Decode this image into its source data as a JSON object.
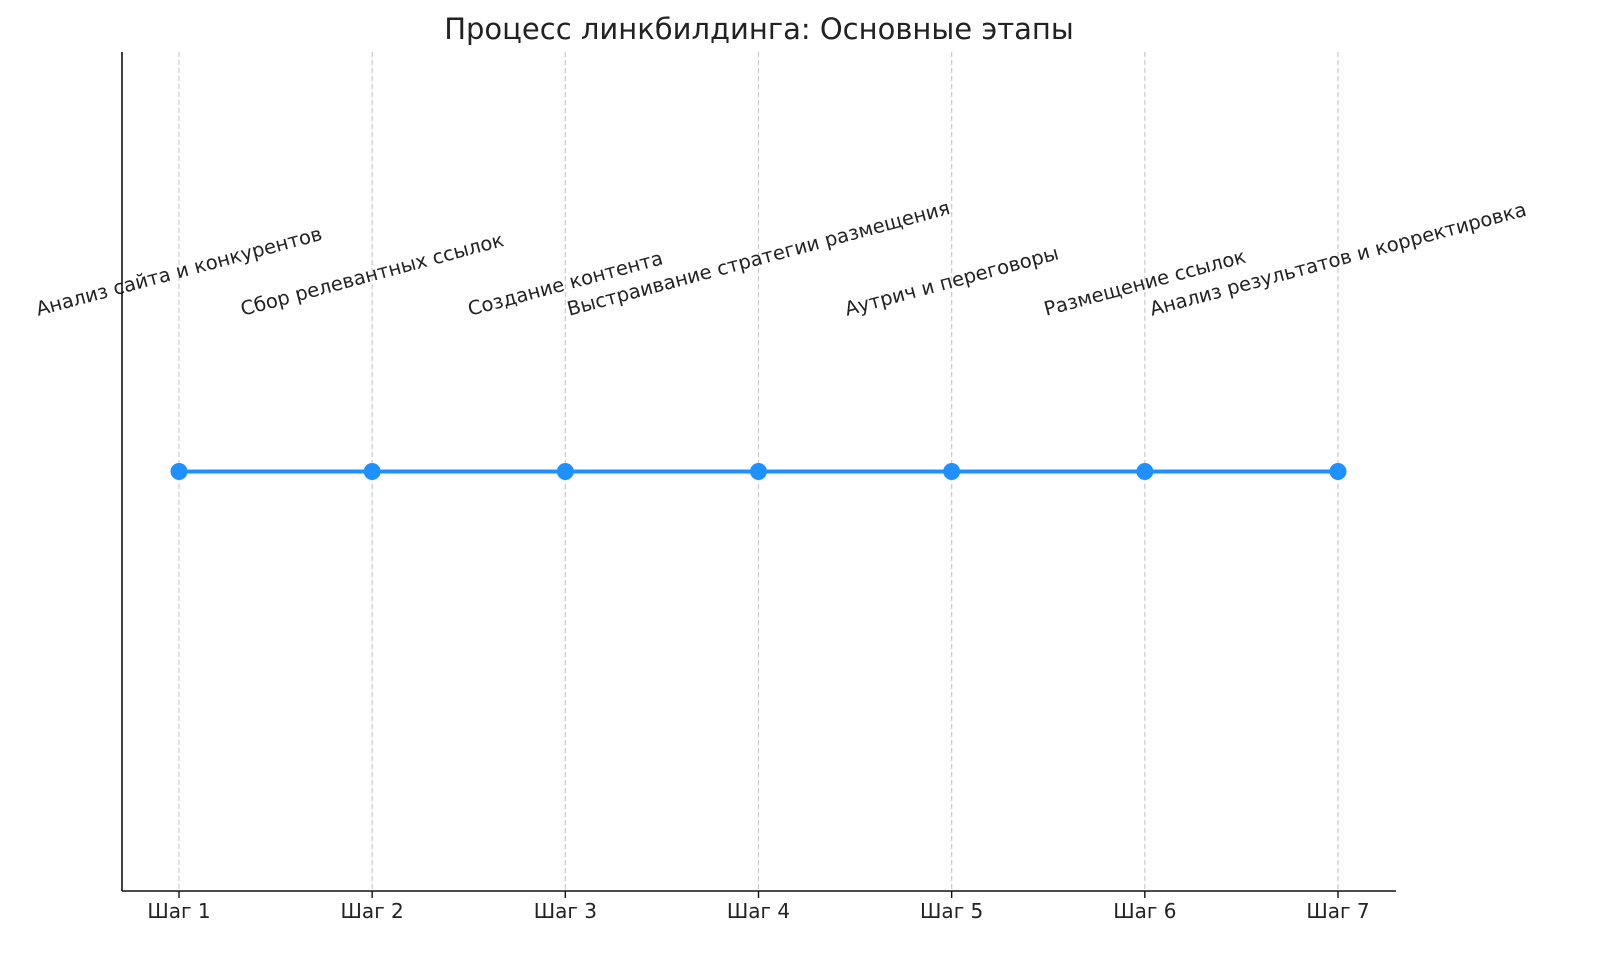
{
  "chart_data": {
    "type": "line",
    "title": "Процесс линкбилдинга: Основные этапы",
    "categories": [
      "Шаг 1",
      "Шаг 2",
      "Шаг 3",
      "Шаг 4",
      "Шаг 5",
      "Шаг 6",
      "Шаг 7"
    ],
    "series": [
      {
        "values": [
          1,
          1,
          1,
          1,
          1,
          1,
          1
        ],
        "color": "#1E90FF",
        "marker": "circle"
      }
    ],
    "annotations": [
      "Анализ сайта и конкурентов",
      "Сбор релевантных ссылок",
      "Создание контента",
      "Выстраивание стратегии размещения",
      "Аутрич и переговоры",
      "Размещение ссылок",
      "Анализ результатов и корректировка"
    ],
    "annotation_y": 1.18,
    "annotation_rotation_deg": 15,
    "ylim": [
      0.5,
      1.5
    ],
    "y_ticks_visible": false,
    "grid": "vertical dashed",
    "xlabel": "",
    "ylabel": ""
  }
}
